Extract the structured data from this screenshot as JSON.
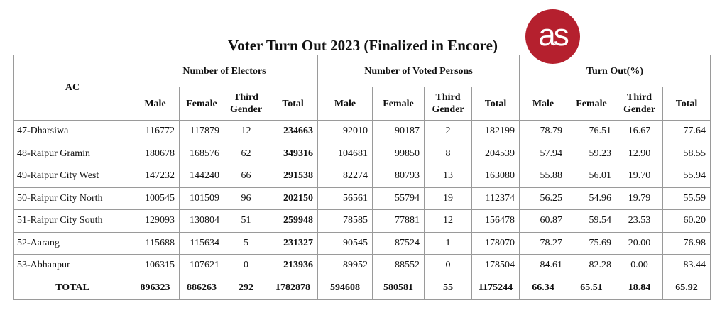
{
  "title": "Voter Turn Out 2023 (Finalized in Encore)",
  "logo": {
    "text": "as",
    "color": "#b5202e"
  },
  "headers": {
    "ac": "AC",
    "groups": [
      "Number of Electors",
      "Number of Voted Persons",
      "Turn Out(%)"
    ],
    "sub": [
      "Male",
      "Female",
      "Third Gender",
      "Total"
    ]
  },
  "rows": [
    [
      "47-Dharsiwa",
      "116772",
      "117879",
      "12",
      "234663",
      "92010",
      "90187",
      "2",
      "182199",
      "78.79",
      "76.51",
      "16.67",
      "77.64"
    ],
    [
      "48-Raipur Gramin",
      "180678",
      "168576",
      "62",
      "349316",
      "104681",
      "99850",
      "8",
      "204539",
      "57.94",
      "59.23",
      "12.90",
      "58.55"
    ],
    [
      "49-Raipur City West",
      "147232",
      "144240",
      "66",
      "291538",
      "82274",
      "80793",
      "13",
      "163080",
      "55.88",
      "56.01",
      "19.70",
      "55.94"
    ],
    [
      "50-Raipur City North",
      "100545",
      "101509",
      "96",
      "202150",
      "56561",
      "55794",
      "19",
      "112374",
      "56.25",
      "54.96",
      "19.79",
      "55.59"
    ],
    [
      "51-Raipur City South",
      "129093",
      "130804",
      "51",
      "259948",
      "78585",
      "77881",
      "12",
      "156478",
      "60.87",
      "59.54",
      "23.53",
      "60.20"
    ],
    [
      "52-Aarang",
      "115688",
      "115634",
      "5",
      "231327",
      "90545",
      "87524",
      "1",
      "178070",
      "78.27",
      "75.69",
      "20.00",
      "76.98"
    ],
    [
      "53-Abhanpur",
      "106315",
      "107621",
      "0",
      "213936",
      "89952",
      "88552",
      "0",
      "178504",
      "84.61",
      "82.28",
      "0.00",
      "83.44"
    ]
  ],
  "total": [
    "TOTAL",
    "896323",
    "886263",
    "292",
    "1782878",
    "594608",
    "580581",
    "55",
    "1175244",
    "66.34",
    "65.51",
    "18.84",
    "65.92"
  ]
}
